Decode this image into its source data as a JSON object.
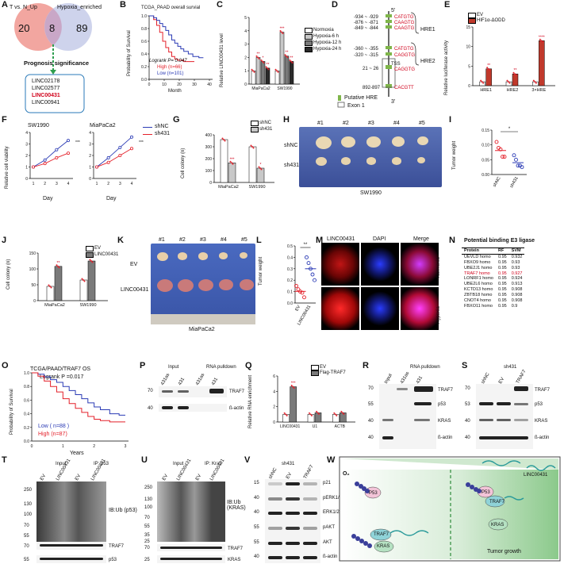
{
  "panels": {
    "A": "A",
    "B": "B",
    "C": "C",
    "D": "D",
    "E": "E",
    "F": "F",
    "G": "G",
    "H": "H",
    "I": "I",
    "J": "J",
    "K": "K",
    "L": "L",
    "M": "M",
    "N": "N",
    "O": "O",
    "P": "P",
    "Q": "Q",
    "R": "R",
    "S": "S",
    "T": "T",
    "U": "U",
    "V": "V",
    "W": "W"
  },
  "A": {
    "left_label": "T vs. N_Up",
    "right_label": "Hypoxia_enriched",
    "left_count": "20",
    "overlap_count": "8",
    "right_count": "89",
    "arrow_label": "Prognosis significance",
    "genes": [
      "LINC02178",
      "LINC02577",
      "LINC00431",
      "LINC00941"
    ],
    "highlight": "LINC00431",
    "colors": {
      "left": "#f2a6a0",
      "right": "#c5cbe9",
      "overlap": "#c9a7c7",
      "arrow": "#2e9e4f"
    }
  },
  "B": {
    "title": "TCGA_PAAD overall survial",
    "ylabel": "Probability of Survival",
    "xlabel": "Month",
    "logrank": "Logrank P= 0.047",
    "legend": [
      "High (n=66)",
      "Low (n=101)"
    ],
    "chart_data": {
      "type": "line",
      "title": "TCGA_PAAD overall survial",
      "xlabel": "Month",
      "ylabel": "Probability of Survival",
      "xlim": [
        0,
        40
      ],
      "ylim": [
        0,
        1
      ],
      "xticks": [
        "0",
        "10",
        "20",
        "30",
        "40"
      ],
      "yticks": [
        "0.0",
        "0.2",
        "0.4",
        "0.6",
        "0.8",
        "1.0"
      ],
      "series": [
        {
          "name": "High (n=66)",
          "color": "#e4202a",
          "x": [
            0,
            3,
            5,
            7,
            9,
            11,
            13,
            15,
            17,
            19,
            21,
            23,
            26,
            30
          ],
          "y": [
            1,
            0.94,
            0.85,
            0.74,
            0.6,
            0.5,
            0.43,
            0.36,
            0.32,
            0.3,
            0.3,
            0.28,
            0.28,
            0.28
          ]
        },
        {
          "name": "Low (n=101)",
          "color": "#2b3bb5",
          "x": [
            0,
            3,
            5,
            7,
            9,
            11,
            13,
            15,
            17,
            19,
            21,
            23,
            26,
            29,
            33,
            36
          ],
          "y": [
            1,
            0.97,
            0.93,
            0.88,
            0.83,
            0.77,
            0.7,
            0.62,
            0.57,
            0.52,
            0.48,
            0.44,
            0.4,
            0.36,
            0.34,
            0.34
          ]
        }
      ]
    }
  },
  "C": {
    "ylabel": "Relative LINC00431 level",
    "legend": [
      "Normoxia",
      "Hypoxia-6 h",
      "Hypoxia-12 h",
      "Hypoxia-24 h"
    ],
    "legend_colors": [
      "#ffffff",
      "#c8c8c8",
      "#7a7a7a",
      "#2a2a2a"
    ],
    "sig": [
      "**",
      "*",
      "**",
      "***",
      "**",
      "**"
    ],
    "chart_data": {
      "type": "bar",
      "categories": [
        "MiaPaCa2",
        "SW1990"
      ],
      "ylabel": "Relative LINC00431 level",
      "ylim": [
        0,
        5
      ],
      "yticks": [
        "0",
        "1",
        "2",
        "3",
        "4",
        "5"
      ],
      "series": [
        {
          "name": "Normoxia",
          "values": [
            1.0,
            1.0
          ]
        },
        {
          "name": "Hypoxia-6 h",
          "values": [
            2.0,
            3.9
          ]
        },
        {
          "name": "Hypoxia-12 h",
          "values": [
            1.7,
            2.1
          ]
        },
        {
          "name": "Hypoxia-24 h",
          "values": [
            1.2,
            1.7
          ]
        }
      ]
    }
  },
  "D": {
    "five": "5'",
    "three": "3'",
    "hre1": "HRE1",
    "hre2": "HRE2",
    "tss": "TSS",
    "sites": [
      {
        "pos": "-934 ~ -929",
        "seq": "CATGTG"
      },
      {
        "pos": "-876 ~ -871",
        "seq": "CAAGTG"
      },
      {
        "pos": "-849 ~ -844",
        "seq": "CAAGTG"
      },
      {
        "pos": "-360 ~ -355",
        "seq": "CATGTG"
      },
      {
        "pos": "-320 ~ -315",
        "seq": "CAGGTG"
      },
      {
        "pos": "21 ~ 26",
        "seq": "CAGGTG"
      },
      {
        "pos": "892-897",
        "seq": "CACGTT"
      }
    ],
    "legend": [
      "Putative HRE",
      "Exon 1"
    ]
  },
  "E": {
    "ylabel": "Relative luciferase activity",
    "legend": [
      "EV",
      "HIF1α-ΔODD"
    ],
    "sig": [
      "**",
      "**",
      "****"
    ],
    "chart_data": {
      "type": "bar",
      "categories": [
        "HRE1",
        "HRE2",
        "3×HRE"
      ],
      "ylim": [
        0,
        15
      ],
      "yticks": [
        "0",
        "5",
        "10",
        "15"
      ],
      "series": [
        {
          "name": "EV",
          "values": [
            1.0,
            1.0,
            1.0
          ]
        },
        {
          "name": "HIF1α-ΔODD",
          "values": [
            4.3,
            3.0,
            11.5
          ]
        }
      ]
    }
  },
  "F": {
    "ylabel": "Relative cell viability",
    "xlabel": "Day",
    "legend": [
      "shNC",
      "sh431"
    ],
    "sig": "***",
    "chart_data": [
      {
        "type": "line",
        "title": "SW1990",
        "xlim": [
          1,
          4
        ],
        "ylim": [
          0,
          4
        ],
        "x": [
          1,
          2,
          3,
          4
        ],
        "series": [
          {
            "name": "shNC",
            "values": [
              1.0,
              1.6,
              2.5,
              3.3
            ]
          },
          {
            "name": "sh431",
            "values": [
              1.0,
              1.3,
              1.8,
              2.2
            ]
          }
        ]
      },
      {
        "type": "line",
        "title": "MiaPaCa2",
        "xlim": [
          1,
          4
        ],
        "ylim": [
          0,
          4
        ],
        "x": [
          1,
          2,
          3,
          4
        ],
        "series": [
          {
            "name": "shNC",
            "values": [
              1.0,
              1.8,
              2.7,
              3.6
            ]
          },
          {
            "name": "sh431",
            "values": [
              1.0,
              1.4,
              2.0,
              2.6
            ]
          }
        ]
      }
    ],
    "xticks": [
      "1",
      "2",
      "3",
      "4"
    ],
    "yticks": [
      "0",
      "1",
      "2",
      "3",
      "4"
    ]
  },
  "G": {
    "ylabel": "Cell colony (n)",
    "legend": [
      "shNC",
      "sh431"
    ],
    "sig": [
      "***",
      "*"
    ],
    "chart_data": {
      "type": "bar",
      "categories": [
        "MiaPaCa2",
        "SW1990"
      ],
      "ylim": [
        0,
        400
      ],
      "yticks": [
        "0",
        "100",
        "200",
        "300",
        "400"
      ],
      "series": [
        {
          "name": "shNC",
          "values": [
            360,
            300
          ]
        },
        {
          "name": "sh431",
          "values": [
            165,
            120
          ]
        }
      ]
    }
  },
  "H": {
    "cols": [
      "#1",
      "#2",
      "#3",
      "#4",
      "#5"
    ],
    "rows": [
      "shNC",
      "sh431"
    ],
    "caption": "SW1990"
  },
  "I": {
    "ylabel": "Tumor weight",
    "sig": "*",
    "chart_data": {
      "type": "scatter",
      "categories": [
        "shNC",
        "sh431"
      ],
      "ylim": [
        0,
        0.15
      ],
      "yticks": [
        "0.00",
        "0.05",
        "0.10",
        "0.15"
      ],
      "series": [
        {
          "name": "shNC",
          "values": [
            0.11,
            0.09,
            0.085,
            0.06,
            0.06
          ]
        },
        {
          "name": "sh431",
          "values": [
            0.065,
            0.05,
            0.03,
            0.03,
            0.025
          ]
        }
      ]
    }
  },
  "J": {
    "ylabel": "Cell colony (n)",
    "legend": [
      "EV",
      "LINC00431"
    ],
    "sig": [
      "**",
      "**"
    ],
    "chart_data": {
      "type": "bar",
      "categories": [
        "MiaPaCa2",
        "SW1990"
      ],
      "ylim": [
        0,
        150
      ],
      "yticks": [
        "0",
        "50",
        "100",
        "150"
      ],
      "series": [
        {
          "name": "EV",
          "values": [
            45,
            65
          ]
        },
        {
          "name": "LINC00431",
          "values": [
            108,
            125
          ]
        }
      ]
    }
  },
  "K": {
    "cols": [
      "#1",
      "#2",
      "#3",
      "#4",
      "#5"
    ],
    "rows": [
      "EV",
      "LINC00431"
    ],
    "caption": "MiaPaCa2"
  },
  "L": {
    "ylabel": "Tumor weight",
    "sig": "**",
    "chart_data": {
      "type": "scatter",
      "categories": [
        "EV",
        "LINC00431"
      ],
      "ylim": [
        0,
        0.5
      ],
      "yticks": [
        "0.0",
        "0.1",
        "0.2",
        "0.3",
        "0.4",
        "0.5"
      ],
      "series": [
        {
          "name": "EV",
          "values": [
            0.15,
            0.12,
            0.1,
            0.09,
            0.05
          ]
        },
        {
          "name": "LINC00431",
          "values": [
            0.4,
            0.35,
            0.3,
            0.25,
            0.2
          ]
        }
      ]
    }
  },
  "M": {
    "cols": [
      "LINC00431",
      "DAPI",
      "Merge"
    ],
    "rows": [
      "Normoxia",
      "Hypoxia"
    ]
  },
  "N": {
    "title": "Potential binding E3 ligase",
    "headers": [
      "Protein",
      "RF",
      "SVM"
    ],
    "rows": [
      [
        "UEVLD homo",
        "0.95",
        "0.932"
      ],
      [
        "FBXO9 homo",
        "0.95",
        "0.93"
      ],
      [
        "UBE2J1 homo",
        "0.95",
        "0.93"
      ],
      [
        "TRAF7 homo",
        "0.95",
        "0.927"
      ],
      [
        "LONRF1 homo",
        "0.95",
        "0.924"
      ],
      [
        "UBE2L6 homo",
        "0.95",
        "0.913"
      ],
      [
        "KCTD13 homo",
        "0.95",
        "0.908"
      ],
      [
        "ZBTB18 homo",
        "0.95",
        "0.908"
      ],
      [
        "CNOT4 homo",
        "0.95",
        "0.908"
      ],
      [
        "FBXO11 homo",
        "0.95",
        "0.9"
      ]
    ],
    "highlight_row": 3
  },
  "O": {
    "title": "TCGA/PAAD/TRAF7 OS",
    "logrank": "Logrank P =0.017",
    "ylabel": "Probability of Survival",
    "xlabel": "Years",
    "legend": [
      "Low ( n=88 )",
      "High (n=87)"
    ],
    "chart_data": {
      "type": "line",
      "xlim": [
        0,
        3
      ],
      "ylim": [
        0,
        1
      ],
      "xticks": [
        "0",
        "1",
        "2",
        "3"
      ],
      "yticks": [
        "0.0",
        "0.2",
        "0.4",
        "0.6",
        "0.8",
        "1.0"
      ],
      "series": [
        {
          "name": "Low ( n=88 )",
          "color": "#2b3bb5",
          "x": [
            0,
            0.2,
            0.4,
            0.6,
            0.8,
            1.0,
            1.2,
            1.4,
            1.6,
            1.8,
            2.0,
            2.2,
            2.5,
            2.8,
            3.0
          ],
          "y": [
            1,
            0.98,
            0.94,
            0.9,
            0.86,
            0.8,
            0.74,
            0.68,
            0.62,
            0.56,
            0.5,
            0.46,
            0.4,
            0.38,
            0.38
          ]
        },
        {
          "name": "High (n=87)",
          "color": "#e4202a",
          "x": [
            0,
            0.2,
            0.4,
            0.6,
            0.8,
            1.0,
            1.2,
            1.4,
            1.6,
            1.8,
            2.0,
            2.2,
            2.5,
            2.8,
            3.0
          ],
          "y": [
            1,
            0.95,
            0.88,
            0.8,
            0.72,
            0.62,
            0.55,
            0.48,
            0.42,
            0.36,
            0.32,
            0.3,
            0.28,
            0.28,
            0.28
          ]
        }
      ]
    }
  },
  "P": {
    "header": [
      "Input",
      "RNA pulldown"
    ],
    "lanes": [
      "431as",
      "431",
      "431as",
      "431"
    ],
    "mw": [
      "70",
      "40"
    ],
    "bands": [
      "TRAF7",
      "ß-actin"
    ]
  },
  "Q": {
    "ylabel": "Relative RNA enrichment",
    "legend": [
      "EV",
      "Flag-TRAF7"
    ],
    "sig": "***",
    "chart_data": {
      "type": "bar",
      "categories": [
        "LINC00431",
        "U1",
        "ACTB"
      ],
      "ylim": [
        0,
        6
      ],
      "yticks": [
        "0",
        "2",
        "4",
        "6"
      ],
      "series": [
        {
          "name": "EV",
          "values": [
            1.0,
            1.0,
            1.0
          ]
        },
        {
          "name": "Flag-TRAF7",
          "values": [
            4.6,
            1.2,
            1.2
          ]
        }
      ]
    }
  },
  "R": {
    "header": [
      "Input",
      "RNA pulldown"
    ],
    "lanes": [
      "Input",
      "431as",
      "431"
    ],
    "mw": [
      "70",
      "55",
      "40",
      "40"
    ],
    "bands": [
      "TRAF7",
      "p53",
      "KRAS",
      "ß-actin"
    ]
  },
  "S": {
    "header": "sh431",
    "lanes": [
      "shNC",
      "EV",
      "TRAF7"
    ],
    "mw": [
      "70",
      "53",
      "40",
      "40"
    ],
    "bands": [
      "TRAF7",
      "p53",
      "KRAS",
      "ß-actin"
    ]
  },
  "T": {
    "header": [
      "Input",
      "IP: p53"
    ],
    "lanes": [
      "EV",
      "LINC00431",
      "EV",
      "LINC00431"
    ],
    "mw": [
      "250",
      "130",
      "100",
      "70",
      "55",
      "70",
      "55"
    ],
    "label": "IB:Ub (p53)",
    "bands": [
      "TRAF7",
      "p53"
    ]
  },
  "U": {
    "header": [
      "Input",
      "IP: Kras"
    ],
    "lanes": [
      "EV",
      "LINC00431",
      "EV",
      "LINC00431"
    ],
    "mw": [
      "250",
      "130",
      "100",
      "70",
      "55",
      "35",
      "25",
      "70",
      "25"
    ],
    "label": "IB:Ub (KRAS)",
    "bands": [
      "TRAF7",
      "KRAS"
    ]
  },
  "V": {
    "header": "sh431",
    "lanes": [
      "shNC",
      "EV",
      "TRAF7"
    ],
    "mw": [
      "15",
      "40",
      "40",
      "55",
      "55",
      "40"
    ],
    "bands": [
      "p21",
      "pERK1/2",
      "ERK1/2",
      "pAKT",
      "AKT",
      "ß-actin"
    ]
  },
  "W": {
    "o2": "O₂",
    "lnc": "LINC00431",
    "p53": "P53",
    "traf7": "TRAF7",
    "kras": "KRAS",
    "outcome": "Tumor growth"
  }
}
